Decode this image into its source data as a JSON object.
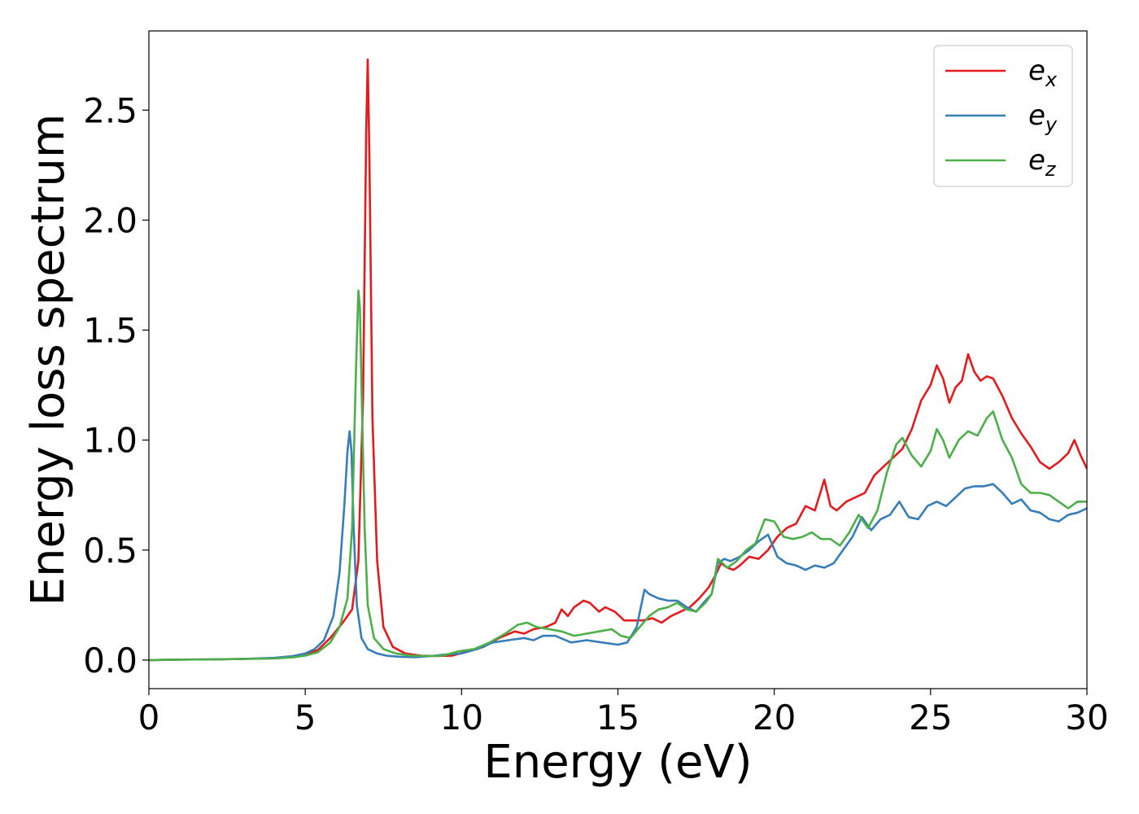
{
  "chart_data": {
    "type": "line",
    "xlabel": "Energy (eV)",
    "ylabel": "Energy loss spectrum",
    "xlim": [
      0,
      30
    ],
    "ylim": [
      -0.13,
      2.86
    ],
    "xticks": [
      0,
      5,
      10,
      15,
      20,
      25,
      30
    ],
    "yticks": [
      0.0,
      0.5,
      1.0,
      1.5,
      2.0,
      2.5
    ],
    "grid": false,
    "legend_position": "top-right",
    "series": [
      {
        "name": "e_x",
        "label_main": "e",
        "label_sub": "x",
        "color": "#e41a1c",
        "x": [
          0,
          1,
          2,
          3,
          4,
          4.6,
          5,
          5.4,
          5.8,
          6.2,
          6.5,
          6.7,
          6.85,
          6.95,
          7.0,
          7.05,
          7.15,
          7.3,
          7.5,
          7.8,
          8.2,
          8.7,
          9.2,
          9.7,
          10.2,
          10.7,
          11.2,
          11.7,
          12.0,
          12.3,
          12.7,
          13.0,
          13.2,
          13.4,
          13.6,
          13.9,
          14.1,
          14.4,
          14.6,
          14.9,
          15.2,
          15.5,
          15.8,
          16.1,
          16.4,
          16.7,
          17.0,
          17.3,
          17.6,
          17.9,
          18.1,
          18.3,
          18.5,
          18.7,
          18.9,
          19.2,
          19.5,
          19.8,
          20.1,
          20.4,
          20.7,
          21.0,
          21.3,
          21.6,
          21.8,
          22.0,
          22.3,
          22.6,
          22.9,
          23.2,
          23.5,
          23.8,
          24.1,
          24.4,
          24.7,
          25.0,
          25.2,
          25.4,
          25.6,
          25.8,
          26.0,
          26.2,
          26.4,
          26.6,
          26.8,
          27.0,
          27.3,
          27.6,
          27.9,
          28.2,
          28.5,
          28.8,
          29.1,
          29.4,
          29.6,
          29.8,
          30.0
        ],
        "y": [
          0,
          0.002,
          0.003,
          0.005,
          0.008,
          0.014,
          0.025,
          0.045,
          0.1,
          0.17,
          0.23,
          0.45,
          1.2,
          2.4,
          2.73,
          2.3,
          1.1,
          0.45,
          0.15,
          0.06,
          0.03,
          0.02,
          0.018,
          0.02,
          0.04,
          0.06,
          0.1,
          0.13,
          0.12,
          0.14,
          0.15,
          0.17,
          0.23,
          0.2,
          0.24,
          0.27,
          0.26,
          0.22,
          0.24,
          0.22,
          0.18,
          0.18,
          0.18,
          0.19,
          0.17,
          0.2,
          0.22,
          0.24,
          0.28,
          0.33,
          0.38,
          0.44,
          0.42,
          0.41,
          0.43,
          0.47,
          0.46,
          0.5,
          0.56,
          0.6,
          0.62,
          0.7,
          0.68,
          0.82,
          0.7,
          0.68,
          0.72,
          0.74,
          0.76,
          0.84,
          0.88,
          0.92,
          0.96,
          1.05,
          1.18,
          1.25,
          1.34,
          1.28,
          1.17,
          1.24,
          1.27,
          1.39,
          1.31,
          1.27,
          1.29,
          1.28,
          1.2,
          1.1,
          1.03,
          0.97,
          0.9,
          0.87,
          0.9,
          0.94,
          1.0,
          0.93,
          0.87
        ]
      },
      {
        "name": "e_y",
        "label_main": "e",
        "label_sub": "y",
        "color": "#377eb8",
        "x": [
          0,
          1,
          2,
          3,
          4,
          4.6,
          5,
          5.3,
          5.6,
          5.9,
          6.1,
          6.25,
          6.35,
          6.42,
          6.48,
          6.55,
          6.65,
          6.8,
          7.0,
          7.3,
          7.6,
          8.0,
          8.5,
          9.0,
          9.5,
          10.0,
          10.5,
          11.0,
          11.5,
          12.0,
          12.3,
          12.6,
          13.0,
          13.5,
          14.0,
          14.5,
          15.0,
          15.3,
          15.6,
          15.85,
          16.0,
          16.3,
          16.6,
          16.9,
          17.2,
          17.5,
          17.8,
          18.0,
          18.2,
          18.4,
          18.6,
          18.9,
          19.2,
          19.5,
          19.8,
          20.1,
          20.4,
          20.7,
          21.0,
          21.3,
          21.6,
          21.9,
          22.2,
          22.5,
          22.8,
          23.1,
          23.4,
          23.7,
          24.0,
          24.3,
          24.6,
          24.9,
          25.2,
          25.5,
          25.8,
          26.1,
          26.4,
          26.7,
          27.0,
          27.3,
          27.6,
          27.9,
          28.2,
          28.5,
          28.8,
          29.1,
          29.4,
          29.7,
          30.0
        ],
        "y": [
          0,
          0.002,
          0.003,
          0.005,
          0.01,
          0.018,
          0.03,
          0.05,
          0.09,
          0.2,
          0.4,
          0.7,
          0.95,
          1.04,
          0.95,
          0.6,
          0.25,
          0.1,
          0.05,
          0.03,
          0.02,
          0.015,
          0.013,
          0.018,
          0.025,
          0.03,
          0.05,
          0.08,
          0.09,
          0.1,
          0.09,
          0.11,
          0.11,
          0.08,
          0.09,
          0.08,
          0.07,
          0.08,
          0.15,
          0.32,
          0.3,
          0.28,
          0.27,
          0.27,
          0.24,
          0.22,
          0.27,
          0.3,
          0.44,
          0.46,
          0.45,
          0.47,
          0.5,
          0.54,
          0.57,
          0.47,
          0.44,
          0.43,
          0.41,
          0.43,
          0.42,
          0.44,
          0.5,
          0.56,
          0.65,
          0.59,
          0.64,
          0.66,
          0.72,
          0.65,
          0.64,
          0.7,
          0.72,
          0.7,
          0.74,
          0.78,
          0.79,
          0.79,
          0.8,
          0.76,
          0.71,
          0.73,
          0.68,
          0.67,
          0.64,
          0.63,
          0.66,
          0.67,
          0.69
        ]
      },
      {
        "name": "e_z",
        "label_main": "e",
        "label_sub": "z",
        "color": "#4daf4a",
        "x": [
          0,
          1,
          2,
          3,
          4,
          4.6,
          5,
          5.4,
          5.8,
          6.1,
          6.35,
          6.5,
          6.62,
          6.7,
          6.75,
          6.8,
          6.9,
          7.0,
          7.2,
          7.5,
          7.9,
          8.4,
          8.9,
          9.4,
          9.9,
          10.4,
          10.9,
          11.4,
          11.8,
          12.1,
          12.4,
          12.8,
          13.2,
          13.6,
          14.0,
          14.4,
          14.8,
          15.1,
          15.4,
          15.7,
          16.0,
          16.3,
          16.6,
          16.9,
          17.2,
          17.5,
          17.8,
          18.0,
          18.2,
          18.5,
          18.8,
          19.1,
          19.4,
          19.7,
          20.0,
          20.3,
          20.6,
          20.9,
          21.2,
          21.5,
          21.8,
          22.1,
          22.4,
          22.7,
          23.0,
          23.3,
          23.6,
          23.9,
          24.1,
          24.4,
          24.7,
          25.0,
          25.2,
          25.4,
          25.6,
          25.9,
          26.2,
          26.5,
          26.8,
          27.0,
          27.3,
          27.6,
          27.9,
          28.2,
          28.5,
          28.8,
          29.1,
          29.4,
          29.7,
          30.0
        ],
        "y": [
          0,
          0.002,
          0.003,
          0.005,
          0.007,
          0.012,
          0.02,
          0.035,
          0.08,
          0.15,
          0.28,
          0.6,
          1.3,
          1.68,
          1.6,
          1.25,
          0.6,
          0.25,
          0.1,
          0.05,
          0.03,
          0.02,
          0.018,
          0.02,
          0.04,
          0.05,
          0.08,
          0.12,
          0.16,
          0.17,
          0.15,
          0.14,
          0.13,
          0.11,
          0.12,
          0.13,
          0.14,
          0.11,
          0.1,
          0.15,
          0.2,
          0.23,
          0.24,
          0.26,
          0.23,
          0.22,
          0.26,
          0.3,
          0.46,
          0.42,
          0.45,
          0.5,
          0.53,
          0.64,
          0.63,
          0.56,
          0.55,
          0.56,
          0.58,
          0.55,
          0.55,
          0.52,
          0.58,
          0.66,
          0.6,
          0.68,
          0.85,
          0.98,
          1.01,
          0.93,
          0.88,
          0.95,
          1.05,
          1.0,
          0.92,
          1.0,
          1.04,
          1.02,
          1.1,
          1.13,
          1.0,
          0.92,
          0.8,
          0.76,
          0.76,
          0.75,
          0.72,
          0.69,
          0.72,
          0.72
        ]
      }
    ]
  }
}
